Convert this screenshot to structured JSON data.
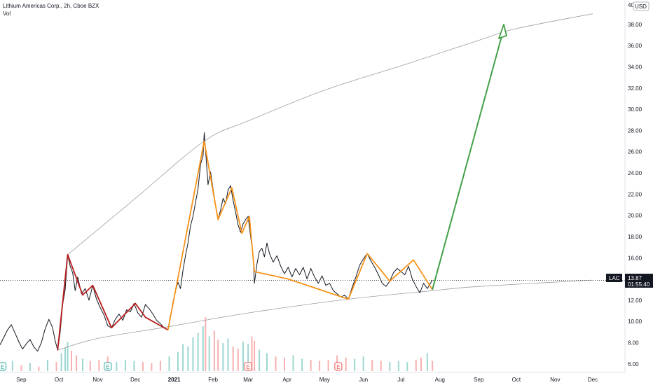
{
  "legend": {
    "symbol_line": "Lithium Americas Corp., 2h, Cboe BZX",
    "volume_label": "Vol"
  },
  "price_axis": {
    "currency": "USD",
    "top_label": "40"
  },
  "last_price": {
    "ticker": "LAC",
    "price": "13.87",
    "countdown": "01:55:40"
  },
  "event_badges": {
    "earnings": "E"
  },
  "colors": {
    "price_line": "#131722",
    "red_pattern": "#b71c1c",
    "orange_pattern": "#f7931a",
    "target_arrow": "#43a047",
    "curves": "#9e9e9e",
    "volume_up": "#26a69a",
    "volume_down": "#ef5350"
  },
  "chart_data": {
    "type": "line",
    "title": "Lithium Americas Corp., 2h, Cboe BZX",
    "ylim": [
      5.2,
      40.3
    ],
    "y_ticks": [
      6,
      8,
      10,
      12,
      14,
      16,
      18,
      20,
      22,
      24,
      26,
      28,
      30,
      32,
      34,
      36,
      38
    ],
    "y_tick_labels": [
      "6.00",
      "8.00",
      "10.00",
      "12.00",
      "14.00",
      "16.00",
      "18.00",
      "20.00",
      "22.00",
      "24.00",
      "26.00",
      "28.00",
      "30.00",
      "32.00",
      "34.00",
      "36.00",
      "38.00"
    ],
    "x_domain": [
      "2020-08-15",
      "2021-12-20"
    ],
    "x_ticks": [
      "2020-09-01",
      "2020-10-01",
      "2020-11-01",
      "2020-12-01",
      "2021-01-01",
      "2021-02-01",
      "2021-03-01",
      "2021-04-01",
      "2021-05-01",
      "2021-06-01",
      "2021-07-01",
      "2021-08-01",
      "2021-09-01",
      "2021-10-01",
      "2021-11-01",
      "2021-12-01"
    ],
    "x_tick_labels": [
      "Sep",
      "Oct",
      "Nov",
      "Dec",
      "2021",
      "Feb",
      "Mar",
      "Apr",
      "May",
      "Jun",
      "Jul",
      "Aug",
      "Sep",
      "Oct",
      "Nov",
      "Dec"
    ],
    "price": [
      [
        "2020-08-15",
        7.8
      ],
      [
        "2020-08-18",
        8.5
      ],
      [
        "2020-08-21",
        9.2
      ],
      [
        "2020-08-24",
        9.7
      ],
      [
        "2020-08-27",
        8.9
      ],
      [
        "2020-08-30",
        8.1
      ],
      [
        "2020-09-02",
        7.4
      ],
      [
        "2020-09-05",
        7.9
      ],
      [
        "2020-09-08",
        8.3
      ],
      [
        "2020-09-11",
        7.6
      ],
      [
        "2020-09-14",
        7.2
      ],
      [
        "2020-09-17",
        8.0
      ],
      [
        "2020-09-20",
        9.3
      ],
      [
        "2020-09-23",
        10.2
      ],
      [
        "2020-09-26",
        9.4
      ],
      [
        "2020-09-28",
        8.2
      ],
      [
        "2020-09-30",
        7.3
      ],
      [
        "2020-10-02",
        9.0
      ],
      [
        "2020-10-04",
        11.6
      ],
      [
        "2020-10-06",
        13.0
      ],
      [
        "2020-10-08",
        16.3
      ],
      [
        "2020-10-10",
        15.2
      ],
      [
        "2020-10-12",
        14.6
      ],
      [
        "2020-10-14",
        12.9
      ],
      [
        "2020-10-16",
        14.2
      ],
      [
        "2020-10-19",
        12.6
      ],
      [
        "2020-10-22",
        13.1
      ],
      [
        "2020-10-25",
        12.0
      ],
      [
        "2020-10-28",
        13.4
      ],
      [
        "2020-10-31",
        12.1
      ],
      [
        "2020-11-03",
        11.3
      ],
      [
        "2020-11-06",
        10.6
      ],
      [
        "2020-11-09",
        9.6
      ],
      [
        "2020-11-12",
        9.4
      ],
      [
        "2020-11-15",
        10.2
      ],
      [
        "2020-11-18",
        10.7
      ],
      [
        "2020-11-21",
        10.1
      ],
      [
        "2020-11-24",
        11.1
      ],
      [
        "2020-11-27",
        10.9
      ],
      [
        "2020-11-30",
        11.7
      ],
      [
        "2020-12-03",
        10.8
      ],
      [
        "2020-12-06",
        10.4
      ],
      [
        "2020-12-09",
        11.6
      ],
      [
        "2020-12-12",
        11.2
      ],
      [
        "2020-12-15",
        10.7
      ],
      [
        "2020-12-18",
        10.1
      ],
      [
        "2020-12-21",
        9.8
      ],
      [
        "2020-12-24",
        9.4
      ],
      [
        "2020-12-27",
        9.2
      ],
      [
        "2020-12-29",
        10.5
      ],
      [
        "2020-12-31",
        11.8
      ],
      [
        "2021-01-02",
        12.9
      ],
      [
        "2021-01-04",
        13.7
      ],
      [
        "2021-01-06",
        13.1
      ],
      [
        "2021-01-08",
        14.8
      ],
      [
        "2021-01-10",
        16.2
      ],
      [
        "2021-01-12",
        17.4
      ],
      [
        "2021-01-14",
        19.0
      ],
      [
        "2021-01-16",
        19.9
      ],
      [
        "2021-01-18",
        21.2
      ],
      [
        "2021-01-20",
        22.5
      ],
      [
        "2021-01-22",
        24.8
      ],
      [
        "2021-01-24",
        25.6
      ],
      [
        "2021-01-25",
        27.8
      ],
      [
        "2021-01-26",
        26.2
      ],
      [
        "2021-01-28",
        22.9
      ],
      [
        "2021-01-30",
        24.1
      ],
      [
        "2021-02-01",
        22.5
      ],
      [
        "2021-02-03",
        21.0
      ],
      [
        "2021-02-05",
        19.6
      ],
      [
        "2021-02-07",
        20.5
      ],
      [
        "2021-02-09",
        21.6
      ],
      [
        "2021-02-11",
        21.1
      ],
      [
        "2021-02-13",
        22.4
      ],
      [
        "2021-02-15",
        22.8
      ],
      [
        "2021-02-17",
        21.4
      ],
      [
        "2021-02-19",
        20.3
      ],
      [
        "2021-02-21",
        19.1
      ],
      [
        "2021-02-23",
        18.4
      ],
      [
        "2021-02-25",
        19.2
      ],
      [
        "2021-02-27",
        19.6
      ],
      [
        "2021-03-01",
        19.9
      ],
      [
        "2021-03-03",
        18.0
      ],
      [
        "2021-03-05",
        16.2
      ],
      [
        "2021-03-06",
        13.6
      ],
      [
        "2021-03-08",
        15.4
      ],
      [
        "2021-03-10",
        16.6
      ],
      [
        "2021-03-12",
        16.9
      ],
      [
        "2021-03-14",
        16.1
      ],
      [
        "2021-03-16",
        17.4
      ],
      [
        "2021-03-18",
        16.4
      ],
      [
        "2021-03-21",
        15.6
      ],
      [
        "2021-03-24",
        16.2
      ],
      [
        "2021-03-27",
        15.2
      ],
      [
        "2021-03-30",
        14.5
      ],
      [
        "2021-04-02",
        15.1
      ],
      [
        "2021-04-05",
        14.2
      ],
      [
        "2021-04-08",
        15.0
      ],
      [
        "2021-04-11",
        14.4
      ],
      [
        "2021-04-14",
        15.1
      ],
      [
        "2021-04-17",
        14.0
      ],
      [
        "2021-04-20",
        15.0
      ],
      [
        "2021-04-23",
        14.2
      ],
      [
        "2021-04-26",
        13.6
      ],
      [
        "2021-04-29",
        14.3
      ],
      [
        "2021-05-02",
        13.4
      ],
      [
        "2021-05-05",
        13.6
      ],
      [
        "2021-05-08",
        12.9
      ],
      [
        "2021-05-11",
        12.6
      ],
      [
        "2021-05-14",
        12.3
      ],
      [
        "2021-05-17",
        12.5
      ],
      [
        "2021-05-20",
        12.1
      ],
      [
        "2021-05-23",
        13.2
      ],
      [
        "2021-05-26",
        14.2
      ],
      [
        "2021-05-29",
        15.3
      ],
      [
        "2021-06-01",
        15.9
      ],
      [
        "2021-06-04",
        16.4
      ],
      [
        "2021-06-07",
        15.7
      ],
      [
        "2021-06-10",
        15.1
      ],
      [
        "2021-06-13",
        14.4
      ],
      [
        "2021-06-16",
        13.6
      ],
      [
        "2021-06-19",
        13.3
      ],
      [
        "2021-06-22",
        13.8
      ],
      [
        "2021-06-25",
        14.6
      ],
      [
        "2021-06-28",
        15.0
      ],
      [
        "2021-07-01",
        14.7
      ],
      [
        "2021-07-04",
        14.4
      ],
      [
        "2021-07-07",
        15.2
      ],
      [
        "2021-07-10",
        14.0
      ],
      [
        "2021-07-13",
        13.3
      ],
      [
        "2021-07-16",
        12.7
      ],
      [
        "2021-07-19",
        13.6
      ],
      [
        "2021-07-22",
        13.1
      ],
      [
        "2021-07-24",
        13.5
      ],
      [
        "2021-07-26",
        13.9
      ]
    ],
    "volume": [
      [
        "2020-08-18",
        0.6,
        1
      ],
      [
        "2020-08-25",
        0.9,
        1
      ],
      [
        "2020-09-01",
        0.5,
        0
      ],
      [
        "2020-09-08",
        0.7,
        1
      ],
      [
        "2020-09-15",
        0.4,
        0
      ],
      [
        "2020-09-22",
        1.0,
        1
      ],
      [
        "2020-09-29",
        0.8,
        0
      ],
      [
        "2020-10-03",
        1.6,
        1
      ],
      [
        "2020-10-06",
        2.1,
        1
      ],
      [
        "2020-10-08",
        2.6,
        1
      ],
      [
        "2020-10-11",
        1.8,
        0
      ],
      [
        "2020-10-15",
        1.4,
        0
      ],
      [
        "2020-10-20",
        1.1,
        1
      ],
      [
        "2020-10-26",
        0.9,
        0
      ],
      [
        "2020-11-02",
        1.0,
        0
      ],
      [
        "2020-11-09",
        1.3,
        0
      ],
      [
        "2020-11-16",
        0.8,
        1
      ],
      [
        "2020-11-23",
        1.0,
        1
      ],
      [
        "2020-11-30",
        0.9,
        1
      ],
      [
        "2020-12-07",
        0.8,
        0
      ],
      [
        "2020-12-14",
        0.7,
        0
      ],
      [
        "2020-12-21",
        0.9,
        0
      ],
      [
        "2020-12-28",
        1.3,
        1
      ],
      [
        "2021-01-04",
        1.7,
        1
      ],
      [
        "2021-01-08",
        2.4,
        1
      ],
      [
        "2021-01-12",
        2.2,
        1
      ],
      [
        "2021-01-16",
        3.0,
        1
      ],
      [
        "2021-01-20",
        3.4,
        1
      ],
      [
        "2021-01-24",
        4.0,
        1
      ],
      [
        "2021-01-26",
        4.8,
        0
      ],
      [
        "2021-01-29",
        3.1,
        1
      ],
      [
        "2021-02-02",
        3.6,
        0
      ],
      [
        "2021-02-05",
        2.8,
        0
      ],
      [
        "2021-02-09",
        2.5,
        1
      ],
      [
        "2021-02-13",
        2.9,
        1
      ],
      [
        "2021-02-17",
        2.2,
        0
      ],
      [
        "2021-02-21",
        2.0,
        0
      ],
      [
        "2021-02-25",
        2.6,
        1
      ],
      [
        "2021-03-01",
        2.4,
        1
      ],
      [
        "2021-03-04",
        3.1,
        0
      ],
      [
        "2021-03-06",
        2.7,
        0
      ],
      [
        "2021-03-10",
        1.9,
        1
      ],
      [
        "2021-03-16",
        1.6,
        1
      ],
      [
        "2021-03-23",
        1.3,
        0
      ],
      [
        "2021-03-30",
        1.2,
        0
      ],
      [
        "2021-04-06",
        1.4,
        1
      ],
      [
        "2021-04-13",
        1.1,
        1
      ],
      [
        "2021-04-20",
        1.0,
        0
      ],
      [
        "2021-04-27",
        0.9,
        0
      ],
      [
        "2021-05-04",
        1.0,
        0
      ],
      [
        "2021-05-11",
        1.4,
        0
      ],
      [
        "2021-05-18",
        1.2,
        0
      ],
      [
        "2021-05-25",
        1.1,
        1
      ],
      [
        "2021-06-01",
        1.3,
        1
      ],
      [
        "2021-06-08",
        1.0,
        0
      ],
      [
        "2021-06-15",
        0.9,
        0
      ],
      [
        "2021-06-22",
        0.8,
        1
      ],
      [
        "2021-06-29",
        0.9,
        1
      ],
      [
        "2021-07-06",
        0.8,
        1
      ],
      [
        "2021-07-13",
        1.0,
        0
      ],
      [
        "2021-07-17",
        1.2,
        0
      ],
      [
        "2021-07-22",
        1.6,
        1
      ],
      [
        "2021-07-26",
        0.9,
        0
      ]
    ],
    "earnings_dates": [
      "2020-08-17",
      "2020-11-09",
      "2021-03-01",
      "2021-05-12"
    ],
    "annotations": {
      "red_zigzag": [
        [
          "2020-09-30",
          7.3
        ],
        [
          "2020-10-08",
          16.3
        ],
        [
          "2020-10-20",
          12.5
        ],
        [
          "2020-10-28",
          13.4
        ],
        [
          "2020-11-12",
          9.4
        ],
        [
          "2020-12-01",
          11.7
        ],
        [
          "2020-12-09",
          10.4
        ],
        [
          "2020-12-27",
          9.2
        ]
      ],
      "orange_pattern": [
        [
          "2020-12-27",
          9.2
        ],
        [
          "2021-01-25",
          27.0
        ],
        [
          "2021-02-05",
          19.6
        ],
        [
          "2021-02-16",
          22.6
        ],
        [
          "2021-02-24",
          18.3
        ],
        [
          "2021-03-02",
          19.9
        ],
        [
          "2021-03-06",
          14.7
        ],
        [
          "2021-04-02",
          14.0
        ],
        [
          "2021-05-20",
          12.1
        ],
        [
          "2021-06-04",
          16.4
        ],
        [
          "2021-06-22",
          13.8
        ],
        [
          "2021-07-11",
          15.8
        ],
        [
          "2021-07-26",
          13.0
        ]
      ],
      "target_arrow": {
        "from": [
          "2021-07-26",
          13.0
        ],
        "to": [
          "2021-09-21",
          38.0
        ]
      },
      "upper_curve": [
        [
          "2020-10-08",
          16.3
        ],
        [
          "2020-12-01",
          21.6
        ],
        [
          "2021-01-25",
          27.0
        ],
        [
          "2021-03-01",
          28.9
        ],
        [
          "2021-05-01",
          31.8
        ],
        [
          "2021-07-01",
          34.1
        ],
        [
          "2021-09-01",
          36.5
        ],
        [
          "2021-10-01",
          37.6
        ],
        [
          "2021-12-01",
          39.0
        ]
      ],
      "lower_curve": [
        [
          "2020-09-30",
          7.3
        ],
        [
          "2020-11-01",
          8.4
        ],
        [
          "2020-12-27",
          9.5
        ],
        [
          "2021-03-01",
          10.8
        ],
        [
          "2021-05-20",
          12.1
        ],
        [
          "2021-07-26",
          12.9
        ],
        [
          "2021-09-01",
          13.3
        ],
        [
          "2021-12-01",
          13.9
        ]
      ],
      "last_price_level": 13.87
    }
  }
}
